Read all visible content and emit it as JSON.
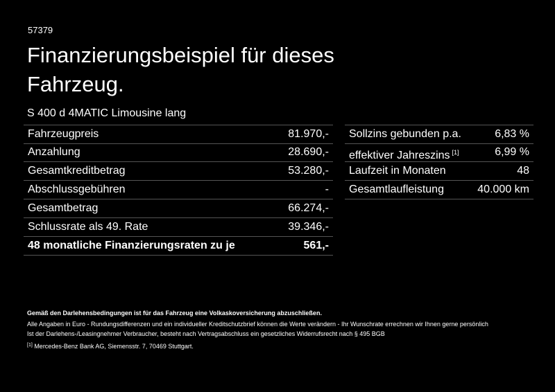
{
  "header": {
    "id": "57379",
    "title_line1": "Finanzierungsbeispiel für dieses",
    "title_line2": "Fahrzeug.",
    "model": "S 400 d 4MATIC Limousine lang"
  },
  "left_table": {
    "rows": [
      [
        "Fahrzeugpreis",
        "81.970,-"
      ],
      [
        "Anzahlung",
        "28.690,-"
      ],
      [
        "Gesamtkreditbetrag",
        "53.280,-"
      ],
      [
        "Abschlussgebühren",
        "-"
      ],
      [
        "Gesamtbetrag",
        "66.274,-"
      ],
      [
        "Schlussrate als 49. Rate",
        "39.346,-"
      ],
      [
        "48 monatliche Finanzierungsraten zu je",
        "561,-"
      ]
    ]
  },
  "right_table": {
    "rows": [
      {
        "label": "Sollzins gebunden p.a.",
        "value": "6,83 %"
      },
      {
        "label": "effektiver Jahreszins",
        "sup": "[1]",
        "value": "6,99 %"
      },
      {
        "label": "Laufzeit in Monaten",
        "value": "48"
      },
      {
        "label": "Gesamtlaufleistung",
        "value": "40.000 km"
      }
    ]
  },
  "footer": {
    "bold_note": "Gemäß den Darlehensbedingungen ist für das Fahrzeug eine Volkaskoversicherung abzuschließen.",
    "line1": "Alle Angaben in Euro - Rundungsdifferenzen und ein individueller Kreditschutzbrief können die Werte verändern - Ihr Wunschrate errechnen wir Ihnen gerne persönlich",
    "line2": "Ist der Darlehens-/Leasingnehmer Verbraucher, besteht nach Vertragsabschluss ein gesetzliches Widerrufsrecht nach § 495 BGB",
    "footnote_mark": "[1]",
    "footnote_text": "Mercedes-Benz Bank AG, Siemensstr. 7, 70469 Stuttgart."
  }
}
